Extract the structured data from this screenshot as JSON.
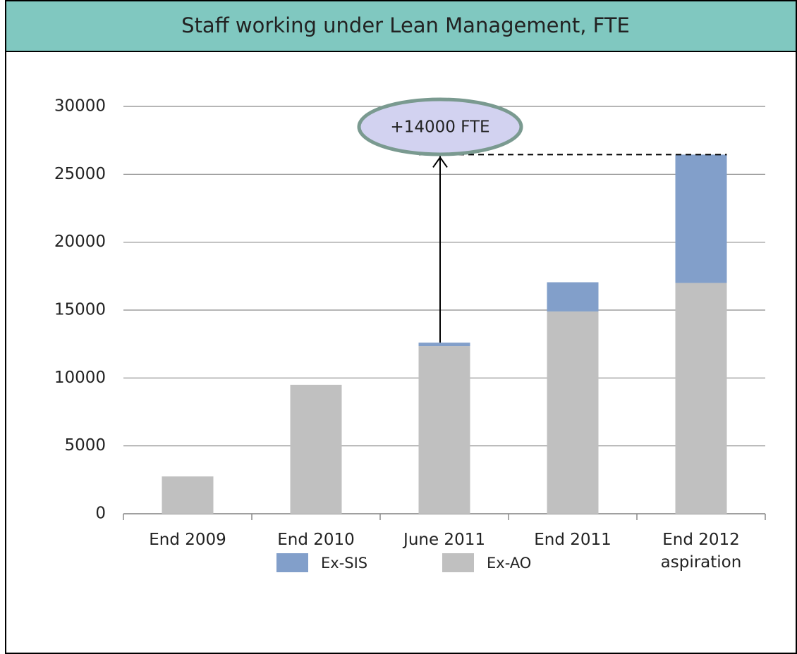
{
  "chart_data": {
    "type": "stacked_bar",
    "title": "Staff working under Lean Management, FTE",
    "categories": [
      "End 2009",
      "End 2010",
      "June 2011",
      "End 2011",
      "End 2012 aspiration"
    ],
    "series": [
      {
        "name": "Ex-AO",
        "color": "#c0c0c0",
        "values": [
          2750,
          9500,
          12350,
          14900,
          17000
        ]
      },
      {
        "name": "Ex-SIS",
        "color": "#829fca",
        "values": [
          0,
          0,
          250,
          2150,
          9450
        ]
      }
    ],
    "legend_order": [
      1,
      0
    ],
    "annotation": "+14000 FTE",
    "ylim": [
      0,
      30000
    ],
    "yticks": [
      0,
      5000,
      10000,
      15000,
      20000,
      25000,
      30000
    ],
    "grid": true
  }
}
